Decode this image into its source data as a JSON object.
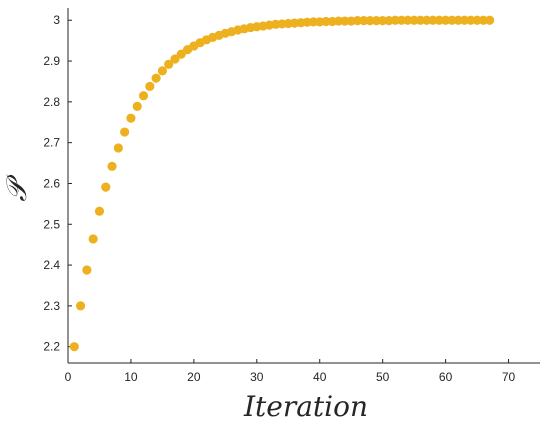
{
  "chart_data": {
    "type": "scatter",
    "title": "",
    "xlabel": "Iteration",
    "ylabel": "𝒫",
    "xlim": [
      0,
      75
    ],
    "ylim": [
      2.16,
      3.03
    ],
    "xticks": [
      "0",
      "10",
      "20",
      "30",
      "40",
      "50",
      "60",
      "70"
    ],
    "yticks": [
      "2.2",
      "2.3",
      "2.4",
      "2.5",
      "2.6",
      "2.7",
      "2.8",
      "2.9",
      "3"
    ],
    "grid": false,
    "marker_color": "#EDB120",
    "series": [
      {
        "x": [
          1,
          2,
          3,
          4,
          5,
          6,
          7,
          8,
          9,
          10,
          11,
          12,
          13,
          14,
          15,
          16,
          17,
          18,
          19,
          20,
          21,
          22,
          23,
          24,
          25,
          26,
          27,
          28,
          29,
          30,
          31,
          32,
          33,
          34,
          35,
          36,
          37,
          38,
          39,
          40,
          41,
          42,
          43,
          44,
          45,
          46,
          47,
          48,
          49,
          50,
          51,
          52,
          53,
          54,
          55,
          56,
          57,
          58,
          59,
          60,
          61,
          62,
          63,
          64,
          65,
          66,
          67
        ],
        "y": [
          2.2,
          2.3,
          2.388,
          2.464,
          2.532,
          2.591,
          2.642,
          2.687,
          2.726,
          2.76,
          2.789,
          2.815,
          2.838,
          2.858,
          2.876,
          2.892,
          2.905,
          2.917,
          2.928,
          2.937,
          2.945,
          2.952,
          2.958,
          2.963,
          2.968,
          2.972,
          2.976,
          2.979,
          2.982,
          2.984,
          2.986,
          2.988,
          2.99,
          2.991,
          2.992,
          2.993,
          2.994,
          2.995,
          2.996,
          2.996,
          2.997,
          2.997,
          2.998,
          2.998,
          2.998,
          2.999,
          2.999,
          2.999,
          2.999,
          2.999,
          2.999,
          3.0,
          3.0,
          3.0,
          3.0,
          3.0,
          3.0,
          3.0,
          3.0,
          3.0,
          3.0,
          3.0,
          3.0,
          3.0,
          3.0,
          3.0,
          3.0
        ]
      }
    ]
  }
}
